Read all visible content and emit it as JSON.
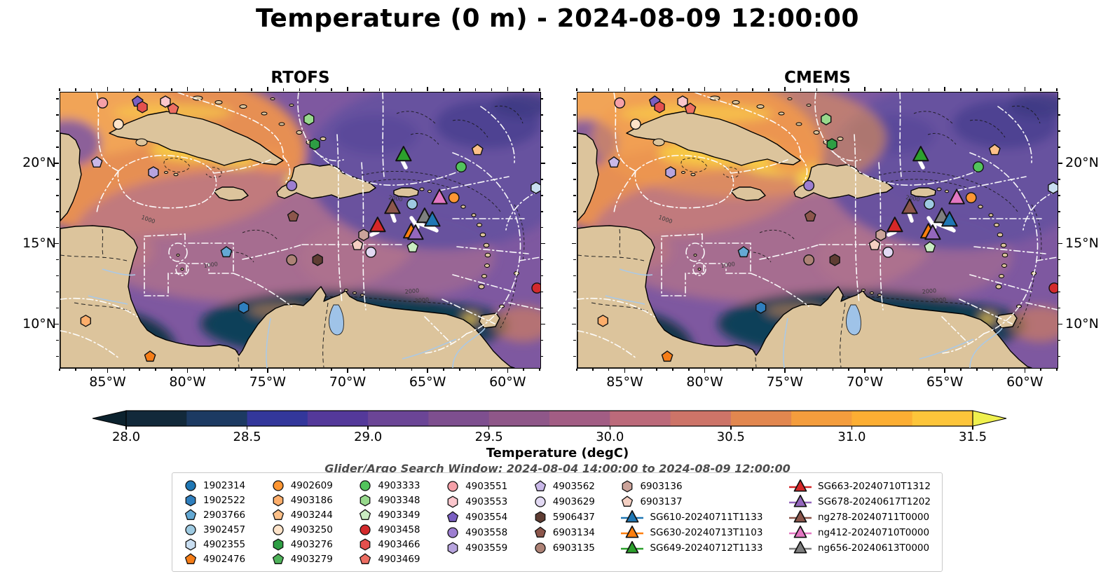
{
  "title": "Temperature (0 m) - 2024-08-09 12:00:00",
  "subtitle": "Glider/Argo Search Window: 2024-08-04 14:00:00 to 2024-08-09 12:00:00",
  "panels": [
    {
      "id": "rtofs",
      "title": "RTOFS"
    },
    {
      "id": "cmems",
      "title": "CMEMS"
    }
  ],
  "axes": {
    "x_tick_labels": [
      "85°W",
      "80°W",
      "75°W",
      "70°W",
      "65°W",
      "60°W"
    ],
    "x_tick_lons": [
      -85,
      -80,
      -75,
      -70,
      -65,
      -60
    ],
    "y_tick_labels": [
      "20°N",
      "15°N",
      "10°N"
    ],
    "y_tick_lats": [
      20,
      15,
      10
    ],
    "lon_min": -88,
    "lon_max": -58,
    "lat_min": 7.33,
    "lat_max": 24.43
  },
  "colorbar": {
    "label": "Temperature (degC)",
    "tick_labels": [
      "28.0",
      "28.5",
      "29.0",
      "29.5",
      "30.0",
      "30.5",
      "31.0",
      "31.5"
    ],
    "segment_colors": [
      "#12293a",
      "#1c3a62",
      "#33379b",
      "#54399a",
      "#6b4596",
      "#7e4f8f",
      "#8f5789",
      "#a25d84",
      "#bc6a7a",
      "#cd7468",
      "#e2874f",
      "#f49d3d",
      "#fcae33",
      "#fdc53a"
    ],
    "under_color": "#0c222e",
    "over_color": "#eff04e"
  },
  "legend": {
    "columns": [
      [
        {
          "id": "1902314",
          "shape": "circle",
          "color": "#1f77b4"
        },
        {
          "id": "1902522",
          "shape": "hexagon",
          "color": "#2f7fbe"
        },
        {
          "id": "2903766",
          "shape": "pentagon",
          "color": "#64a9d4"
        },
        {
          "id": "3902457",
          "shape": "circle",
          "color": "#9ecae1"
        },
        {
          "id": "4902355",
          "shape": "hexagon",
          "color": "#c9def1"
        },
        {
          "id": "4902476",
          "shape": "pentagon",
          "color": "#f57d17"
        }
      ],
      [
        {
          "id": "4902609",
          "shape": "circle",
          "color": "#ff9633"
        },
        {
          "id": "4903186",
          "shape": "hexagon",
          "color": "#fdae6b"
        },
        {
          "id": "4903244",
          "shape": "pentagon",
          "color": "#fdc088"
        },
        {
          "id": "4903250",
          "shape": "circle",
          "color": "#fde3c9"
        },
        {
          "id": "4903276",
          "shape": "hexagon",
          "color": "#2e9e44"
        },
        {
          "id": "4903279",
          "shape": "pentagon",
          "color": "#4fb35a"
        }
      ],
      [
        {
          "id": "4903333",
          "shape": "circle",
          "color": "#52c45c"
        },
        {
          "id": "4903348",
          "shape": "hexagon",
          "color": "#97d98c"
        },
        {
          "id": "4903349",
          "shape": "pentagon",
          "color": "#c9ecc2"
        },
        {
          "id": "4903458",
          "shape": "circle",
          "color": "#d32a2c"
        },
        {
          "id": "4903466",
          "shape": "hexagon",
          "color": "#e4504e"
        },
        {
          "id": "4903469",
          "shape": "pentagon",
          "color": "#ed6e62"
        }
      ],
      [
        {
          "id": "4903551",
          "shape": "circle",
          "color": "#f5a0a8"
        },
        {
          "id": "4903553",
          "shape": "hexagon",
          "color": "#fbc6cc"
        },
        {
          "id": "4903554",
          "shape": "pentagon",
          "color": "#7a5fc2"
        },
        {
          "id": "4903558",
          "shape": "circle",
          "color": "#9d7ed1"
        },
        {
          "id": "4903559",
          "shape": "hexagon",
          "color": "#b7a4de"
        }
      ],
      [
        {
          "id": "4903562",
          "shape": "pentagon",
          "color": "#c9b8e8"
        },
        {
          "id": "4903629",
          "shape": "circle",
          "color": "#e2d9f3"
        },
        {
          "id": "5906437",
          "shape": "hexagon",
          "color": "#5f3d33"
        },
        {
          "id": "6903134",
          "shape": "pentagon",
          "color": "#8c564b"
        },
        {
          "id": "6903135",
          "shape": "circle",
          "color": "#ad8276"
        }
      ],
      [
        {
          "id": "6903136",
          "shape": "hexagon",
          "color": "#cba39a"
        },
        {
          "id": "6903137",
          "shape": "pentagon",
          "color": "#f4cfc2"
        },
        {
          "id": "SG610-20240711T1133",
          "shape": "glider",
          "color": "#1f77b4"
        },
        {
          "id": "SG630-20240713T1103",
          "shape": "glider",
          "color": "#ff7f0e"
        },
        {
          "id": "SG649-20240712T1133",
          "shape": "glider",
          "color": "#2ca02c"
        }
      ],
      [
        {
          "id": "SG663-20240710T1312",
          "shape": "glider",
          "color": "#d62728"
        },
        {
          "id": "SG678-20240617T1202",
          "shape": "glider",
          "color": "#9467bd"
        },
        {
          "id": "ng278-20240711T0000",
          "shape": "glider",
          "color": "#8c564b"
        },
        {
          "id": "ng412-20240710T0000",
          "shape": "glider",
          "color": "#e377c2"
        },
        {
          "id": "ng656-20240613T0000",
          "shape": "glider",
          "color": "#7f7f7f"
        }
      ]
    ]
  },
  "markers": [
    {
      "id": "4903551",
      "shape": "circle",
      "color": "#f5a0a8",
      "x": 0.088,
      "y": 0.038
    },
    {
      "id": "4903554",
      "shape": "pentagon",
      "color": "#7a5fc2",
      "x": 0.161,
      "y": 0.033
    },
    {
      "id": "4903466",
      "shape": "hexagon",
      "color": "#e4504e",
      "x": 0.171,
      "y": 0.053
    },
    {
      "id": "4903553",
      "shape": "hexagon",
      "color": "#fbc6cc",
      "x": 0.219,
      "y": 0.033
    },
    {
      "id": "4903469",
      "shape": "pentagon",
      "color": "#ed6e62",
      "x": 0.235,
      "y": 0.059
    },
    {
      "id": "4903250",
      "shape": "circle",
      "color": "#fde3c9",
      "x": 0.121,
      "y": 0.115
    },
    {
      "id": "4903562",
      "shape": "pentagon",
      "color": "#c9b8e8",
      "x": 0.076,
      "y": 0.254
    },
    {
      "id": "4903559",
      "shape": "hexagon",
      "color": "#b7a4de",
      "x": 0.194,
      "y": 0.29
    },
    {
      "id": "4903348",
      "shape": "hexagon",
      "color": "#97d98c",
      "x": 0.518,
      "y": 0.097
    },
    {
      "id": "4903276",
      "shape": "hexagon",
      "color": "#2e9e44",
      "x": 0.53,
      "y": 0.188
    },
    {
      "id": "4903558",
      "shape": "circle",
      "color": "#9d7ed1",
      "x": 0.482,
      "y": 0.338
    },
    {
      "id": "6903134",
      "shape": "pentagon",
      "color": "#8c564b",
      "x": 0.485,
      "y": 0.45
    },
    {
      "id": "4903244",
      "shape": "pentagon",
      "color": "#fdc088",
      "x": 0.869,
      "y": 0.209
    },
    {
      "id": "4903333",
      "shape": "circle",
      "color": "#52c45c",
      "x": 0.835,
      "y": 0.27
    },
    {
      "id": "3902457",
      "shape": "circle",
      "color": "#9ecae1",
      "x": 0.733,
      "y": 0.405
    },
    {
      "id": "4902609",
      "shape": "circle",
      "color": "#ff9633",
      "x": 0.82,
      "y": 0.382
    },
    {
      "id": "6903136",
      "shape": "hexagon",
      "color": "#cba39a",
      "x": 0.632,
      "y": 0.517
    },
    {
      "id": "6903137",
      "shape": "pentagon",
      "color": "#f4cfc2",
      "x": 0.619,
      "y": 0.554
    },
    {
      "id": "4903629",
      "shape": "circle",
      "color": "#e2d9f3",
      "x": 0.647,
      "y": 0.58
    },
    {
      "id": "4903349",
      "shape": "pentagon",
      "color": "#c9ecc2",
      "x": 0.734,
      "y": 0.562
    },
    {
      "id": "4902355",
      "shape": "hexagon",
      "color": "#c9def1",
      "x": 0.991,
      "y": 0.346
    },
    {
      "id": "4903458",
      "shape": "circle",
      "color": "#d32a2c",
      "x": 0.993,
      "y": 0.71
    },
    {
      "id": "2903766",
      "shape": "pentagon",
      "color": "#64a9d4",
      "x": 0.346,
      "y": 0.58
    },
    {
      "id": "6903135",
      "shape": "circle",
      "color": "#ad8276",
      "x": 0.482,
      "y": 0.608
    },
    {
      "id": "5906437",
      "shape": "hexagon",
      "color": "#5f3d33",
      "x": 0.536,
      "y": 0.608
    },
    {
      "id": "1902522",
      "shape": "hexagon",
      "color": "#2f7fbe",
      "x": 0.382,
      "y": 0.781
    },
    {
      "id": "4903186",
      "shape": "hexagon",
      "color": "#fdae6b",
      "x": 0.053,
      "y": 0.829
    },
    {
      "id": "4902476",
      "shape": "pentagon",
      "color": "#f57d17",
      "x": 0.187,
      "y": 0.959
    },
    {
      "id": "SG649-20240712T1133",
      "shape": "triangle",
      "color": "#2ca02c",
      "x": 0.715,
      "y": 0.226,
      "glider": true
    },
    {
      "id": "ng412-20240710T0000",
      "shape": "triangle",
      "color": "#e377c2",
      "x": 0.79,
      "y": 0.382,
      "glider": true
    },
    {
      "id": "ng278-20240711T0000",
      "shape": "triangle",
      "color": "#8c564b",
      "x": 0.692,
      "y": 0.417,
      "glider": true
    },
    {
      "id": "ng656-20240613T0000",
      "shape": "triangle",
      "color": "#7f7f7f",
      "x": 0.759,
      "y": 0.45,
      "glider": true
    },
    {
      "id": "SG610-20240711T1133",
      "shape": "triangle",
      "color": "#1f77b4",
      "x": 0.775,
      "y": 0.463,
      "glider": true
    },
    {
      "id": "SG663-20240710T1312",
      "shape": "triangle",
      "color": "#d62728",
      "x": 0.661,
      "y": 0.483,
      "glider": true
    },
    {
      "id": "SG630-20240713T1103",
      "shape": "triangle",
      "color": "#ff7f0e",
      "x": 0.731,
      "y": 0.506,
      "glider": true
    },
    {
      "id": "SG678-20240617T1202",
      "shape": "triangle",
      "color": "#9467bd",
      "x": 0.74,
      "y": 0.511,
      "glider": true
    }
  ],
  "glider_tracks": [
    [
      487,
      95,
      493,
      107
    ],
    [
      473,
      172,
      477,
      183
    ],
    [
      444,
      203,
      453,
      199
    ],
    [
      501,
      179,
      510,
      192
    ],
    [
      510,
      186,
      535,
      196
    ],
    [
      528,
      189,
      537,
      197
    ]
  ],
  "chart_data": {
    "type": "heatmap",
    "title": "Temperature (0 m) - 2024-08-09 12:00:00",
    "panels": [
      "RTOFS",
      "CMEMS"
    ],
    "variable": "Temperature (degC)",
    "colorbar_range": [
      28.0,
      31.5
    ],
    "colorbar_step": 0.25,
    "colorbar_ticks": [
      28.0,
      28.5,
      29.0,
      29.5,
      30.0,
      30.5,
      31.0,
      31.5
    ],
    "colorbar_extend": "both",
    "x_axis": {
      "tick_labels": [
        "85°W",
        "80°W",
        "75°W",
        "70°W",
        "65°W",
        "60°W"
      ],
      "lon_values": [
        -85,
        -80,
        -75,
        -70,
        -65,
        -60
      ]
    },
    "y_axis": {
      "tick_labels": [
        "20°N",
        "15°N",
        "10°N"
      ],
      "lat_values": [
        20,
        15,
        10
      ]
    },
    "search_window": {
      "start": "2024-08-04 14:00:00",
      "end": "2024-08-09 12:00:00"
    },
    "platforms": {
      "argo_floats": [
        "1902314",
        "1902522",
        "2903766",
        "3902457",
        "4902355",
        "4902476",
        "4902609",
        "4903186",
        "4903244",
        "4903250",
        "4903276",
        "4903279",
        "4903333",
        "4903348",
        "4903349",
        "4903458",
        "4903466",
        "4903469",
        "4903551",
        "4903553",
        "4903554",
        "4903558",
        "4903559",
        "4903562",
        "4903629",
        "5906437",
        "6903134",
        "6903135",
        "6903136",
        "6903137"
      ],
      "gliders": [
        "SG610-20240711T1133",
        "SG630-20240713T1103",
        "SG649-20240712T1133",
        "SG663-20240710T1312",
        "SG678-20240617T1202",
        "ng278-20240711T0000",
        "ng412-20240710T0000",
        "ng656-20240613T0000"
      ]
    }
  }
}
